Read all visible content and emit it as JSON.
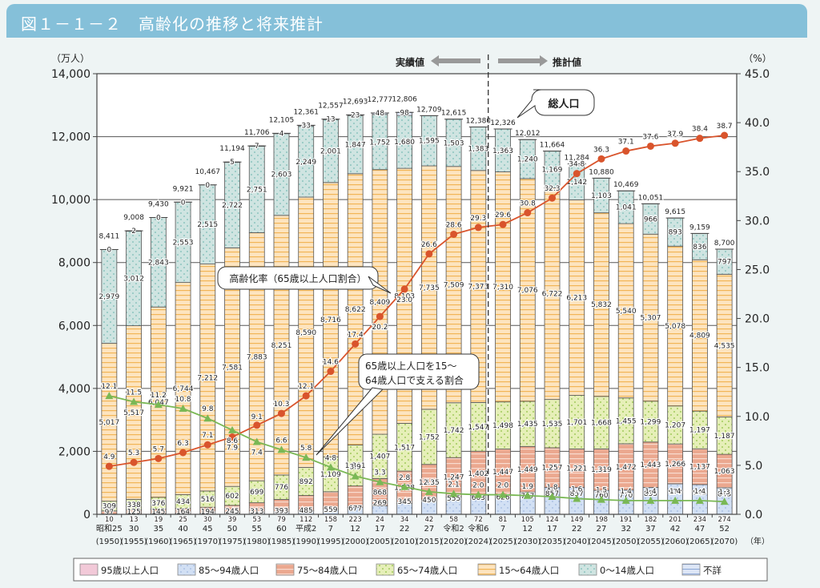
{
  "header": {
    "title": "図１－１－２　高齢化の推移と将来推計"
  },
  "chart_data": {
    "type": "bar",
    "subtype": "stacked-bar-with-lines",
    "title": "図１－１－２　高齢化の推移と将来推計",
    "ylabel_left": "（万人）",
    "ylabel_right": "（%）",
    "xlabel": "（年）",
    "ylim_left": [
      0,
      14000
    ],
    "ylim_right": [
      0.0,
      45.0
    ],
    "yticks_left": [
      "0",
      "2,000",
      "4,000",
      "6,000",
      "8,000",
      "10,000",
      "12,000",
      "14,000"
    ],
    "yticks_right": [
      "0.0",
      "5.0",
      "10.0",
      "15.0",
      "20.0",
      "25.0",
      "30.0",
      "35.0",
      "40.0",
      "45.0"
    ],
    "grid": true,
    "legend_position": "bottom",
    "period_labels": {
      "actual": "実績値",
      "projected": "推計値"
    },
    "categories": [
      "昭和25",
      "30",
      "35",
      "40",
      "45",
      "50",
      "55",
      "60",
      "平成2",
      "7",
      "12",
      "17",
      "22",
      "27",
      "令和2",
      "令和6",
      "7",
      "12",
      "17",
      "22",
      "27",
      "32",
      "37",
      "42",
      "47",
      "52"
    ],
    "years": [
      "(1950)",
      "(1955)",
      "(1960)",
      "(1965)",
      "(1970)",
      "(1975)",
      "(1980)",
      "(1985)",
      "(1990)",
      "(1995)",
      "(2000)",
      "(2005)",
      "(2010)",
      "(2015)",
      "(2020)",
      "(2024)",
      "(2025)",
      "(2030)",
      "(2035)",
      "(2040)",
      "(2045)",
      "(2050)",
      "(2055)",
      "(2060)",
      "(2065)",
      "(2070)"
    ],
    "totals": [
      "8,411",
      "9,008",
      "9,430",
      "9,921",
      "10,467",
      "11,194",
      "11,706",
      "12,105",
      "12,361",
      "12,557",
      "12,693",
      "12,777",
      "12,806",
      "12,709",
      "12,615",
      "12,380",
      "12,326",
      "12,012",
      "11,664",
      "11,284",
      "10,880",
      "10,469",
      "10,051",
      "9,615",
      "9,159",
      "8,700"
    ],
    "series": [
      {
        "name": "95歳以上人口",
        "key": "a95",
        "color": "#f2c9d8",
        "values": [
          0,
          0,
          0,
          0,
          0,
          0,
          0,
          0,
          0,
          0,
          0,
          0,
          0,
          0,
          0,
          0,
          0,
          0,
          0,
          0,
          0,
          0,
          0,
          0,
          0,
          0
        ],
        "labels": [],
        "shown_as": "folded into 85-94 bottom label"
      },
      {
        "name": "85～94歳人口",
        "key": "a85",
        "color": "#c8d9f0",
        "values": [
          10,
          13,
          19,
          25,
          30,
          39,
          53,
          79,
          112,
          158,
          223,
          269,
          345,
          450,
          555,
          603,
          626,
          707,
          857,
          857,
          760,
          770,
          853,
          970,
          945,
          843
        ]
      },
      {
        "name": "75～84歳人口",
        "key": "a75",
        "color": "#eba88f",
        "values": [
          97,
          125,
          145,
          164,
          194,
          245,
          313,
          393,
          485,
          559,
          677,
          868,
          1028,
          1135,
          1247,
          1402,
          1447,
          1449,
          1257,
          1221,
          1319,
          1472,
          1443,
          1266,
          1137,
          1063
        ]
      },
      {
        "name": "65～74歳人口",
        "key": "a65",
        "color": "#e1eba8",
        "values": [
          309,
          338,
          376,
          434,
          516,
          602,
          699,
          776,
          892,
          1109,
          1301,
          1407,
          1517,
          1752,
          1742,
          1547,
          1498,
          1435,
          1535,
          1701,
          1668,
          1455,
          1299,
          1207,
          1197,
          1187
        ]
      },
      {
        "name": "15～64歳人口",
        "key": "a15",
        "color": "#fbd9a6",
        "values": [
          5017,
          5517,
          6047,
          6744,
          7212,
          7581,
          7883,
          8251,
          8590,
          8716,
          8622,
          8409,
          8103,
          7735,
          7509,
          7373,
          7310,
          7076,
          6722,
          6213,
          5832,
          5540,
          5307,
          5078,
          4809,
          4535
        ]
      },
      {
        "name": "0～14歳人口",
        "key": "a0",
        "color": "#cfe4e1",
        "values": [
          2979,
          3012,
          2843,
          2553,
          2515,
          2722,
          2751,
          2603,
          2249,
          2001,
          1847,
          1752,
          1680,
          1595,
          1503,
          1383,
          1363,
          1240,
          1169,
          1142,
          1103,
          1041,
          966,
          893,
          836,
          797
        ]
      },
      {
        "name": "不詳",
        "key": "unk",
        "color": "#d3dff3",
        "values": [
          0,
          2,
          0,
          0,
          0,
          5,
          7,
          4,
          33,
          13,
          23,
          48,
          98,
          0,
          0,
          0,
          0,
          0,
          0,
          0,
          0,
          0,
          0,
          0,
          0,
          0
        ]
      }
    ],
    "bottom_small_labels": [
      "10",
      "13",
      "19",
      "25",
      "30",
      "39",
      "53",
      "79",
      "112",
      "158",
      "223",
      "24",
      "34",
      "42",
      "58",
      "72",
      "81",
      "105",
      "124",
      "149",
      "198",
      "191",
      "182",
      "201",
      "234",
      "274"
    ],
    "label_texts": {
      "a85": [
        "97",
        "125",
        "145",
        "164",
        "194",
        "245",
        "313",
        "393",
        "485",
        "559",
        "677",
        "269",
        "345",
        "450",
        "555",
        "603",
        "626",
        "707",
        "857",
        "857",
        "760",
        "770",
        "853",
        "970",
        "945",
        "843"
      ],
      "a75": [
        "",
        "",
        "",
        "",
        "",
        "",
        "",
        "",
        "",
        "",
        "",
        "868",
        "1,028",
        "1,135",
        "1,247",
        "1,402",
        "1,447",
        "1,449",
        "1,257",
        "1,221",
        "1,319",
        "1,472",
        "1,443",
        "1,266",
        "1,137",
        "1,063"
      ],
      "a65": [
        "309",
        "338",
        "376",
        "434",
        "516",
        "602",
        "699",
        "776",
        "892",
        "1,109",
        "1,301",
        "1,407",
        "1,517",
        "1,752",
        "1,742",
        "1,547",
        "1,498",
        "1,435",
        "1,535",
        "1,701",
        "1,668",
        "1,455",
        "1,299",
        "1,207",
        "1,197",
        "1,187"
      ],
      "a15": [
        "5,017",
        "5,517",
        "6,047",
        "6,744",
        "7,212",
        "7,581",
        "7,883",
        "8,251",
        "8,590",
        "8,716",
        "8,622",
        "8,409",
        "8,103",
        "7,735",
        "7,509",
        "7,373",
        "7,310",
        "7,076",
        "6,722",
        "6,213",
        "5,832",
        "5,540",
        "5,307",
        "5,078",
        "4,809",
        "4,535"
      ],
      "a0": [
        "2,979",
        "3,012",
        "2,843",
        "2,553",
        "2,515",
        "2,722",
        "2,751",
        "2,603",
        "2,249",
        "2,001",
        "1,847",
        "1,752",
        "1,680",
        "1,595",
        "1,503",
        "1,383",
        "1,363",
        "1,240",
        "1,169",
        "1,142",
        "1,103",
        "1,041",
        "966",
        "893",
        "836",
        "797"
      ],
      "unk": [
        "0",
        "2",
        "0",
        "0",
        "0",
        "5",
        "7",
        "4",
        "33",
        "13",
        "23",
        "48",
        "98",
        "",
        "",
        "",
        "",
        "",
        "",
        "",
        "",
        "",
        "",
        "",
        "",
        ""
      ]
    },
    "lines": [
      {
        "name": "高齢化率（65歳以上人口割合）",
        "axis": "right",
        "color": "#d9542c",
        "marker": "circle",
        "values": [
          4.9,
          5.3,
          5.7,
          6.3,
          7.1,
          7.9,
          9.1,
          10.3,
          12.1,
          14.6,
          17.4,
          20.2,
          23.0,
          26.6,
          28.6,
          29.3,
          29.6,
          30.8,
          32.3,
          34.8,
          36.3,
          37.1,
          37.6,
          37.9,
          38.4,
          38.7
        ]
      },
      {
        "name": "65歳以上人口を15～64歳人口で支える割合",
        "axis": "right",
        "color": "#7ab855",
        "marker": "triangle",
        "values": [
          12.1,
          11.5,
          11.2,
          10.8,
          9.8,
          8.6,
          7.4,
          6.6,
          5.8,
          4.8,
          3.9,
          3.3,
          2.8,
          2.3,
          2.1,
          2.0,
          2.0,
          1.9,
          1.8,
          1.6,
          1.5,
          1.4,
          1.4,
          1.4,
          1.4,
          1.3
        ]
      }
    ],
    "annotations": {
      "total": "総人口",
      "aging_rate": "高齢化率（65歳以上人口割合）",
      "support_line1": "65歳以上人口を15～",
      "support_line2": "64歳人口で支える割合"
    }
  },
  "legend": [
    {
      "label": "95歳以上人口",
      "color": "#f2c9d8"
    },
    {
      "label": "85～94歳人口",
      "color": "#c8d9f0"
    },
    {
      "label": "75～84歳人口",
      "color": "#eba88f"
    },
    {
      "label": "65～74歳人口",
      "color": "#e1eba8"
    },
    {
      "label": "15～64歳人口",
      "color": "#fbd9a6"
    },
    {
      "label": "0～14歳人口",
      "color": "#cfe4e1"
    },
    {
      "label": "不詳",
      "color": "#d3dff3"
    }
  ]
}
